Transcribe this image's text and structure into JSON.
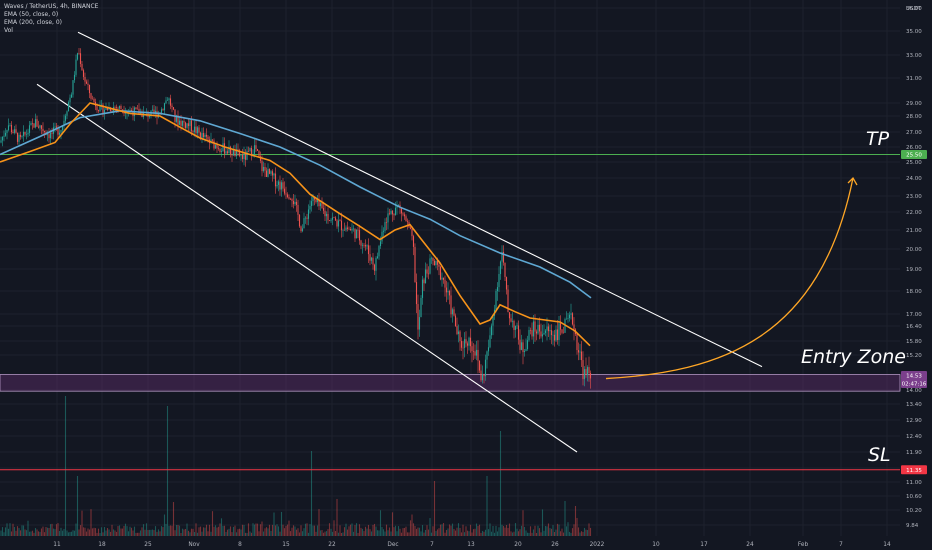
{
  "chart_data": {
    "type": "candlestick",
    "symbol_line": "Waves / TetherUS, 4h, BINANCE",
    "indicators": [
      "EMA (50, close, 0)",
      "EMA (200, close, 0)",
      "Vol"
    ],
    "currency": "USDT",
    "ylim": [
      9.5,
      36.5
    ],
    "y_ticks": [
      36.0,
      35.0,
      33.0,
      31.0,
      29.0,
      28.0,
      27.0,
      26.0,
      25.0,
      24.0,
      23.0,
      22.0,
      21.0,
      20.0,
      19.0,
      18.0,
      17.0,
      16.4,
      15.8,
      15.2,
      14.0,
      13.4,
      12.9,
      12.4,
      11.9,
      11.4,
      11.0,
      10.6,
      10.2,
      9.84
    ],
    "x_ticks": [
      "11",
      "18",
      "25",
      "Nov",
      "8",
      "15",
      "22",
      "Dec",
      "7",
      "13",
      "20",
      "26",
      "2022",
      "10",
      "17",
      "24",
      "Feb",
      "7",
      "14"
    ],
    "tp_price": "25.50",
    "entry_zone_price": "14.53",
    "countdown": "02:47:16",
    "sl_price": "11.35",
    "ema50_path": [
      [
        0,
        25.0
      ],
      [
        30,
        25.7
      ],
      [
        55,
        26.3
      ],
      [
        70,
        27.5
      ],
      [
        90,
        29.0
      ],
      [
        110,
        28.6
      ],
      [
        130,
        28.2
      ],
      [
        160,
        28.0
      ],
      [
        180,
        27.3
      ],
      [
        200,
        26.6
      ],
      [
        225,
        26.0
      ],
      [
        250,
        25.5
      ],
      [
        270,
        25.1
      ],
      [
        290,
        24.3
      ],
      [
        310,
        23.1
      ],
      [
        340,
        21.9
      ],
      [
        360,
        21.2
      ],
      [
        380,
        20.5
      ],
      [
        395,
        21.0
      ],
      [
        410,
        21.3
      ],
      [
        420,
        20.6
      ],
      [
        440,
        19.3
      ],
      [
        460,
        17.8
      ],
      [
        480,
        16.5
      ],
      [
        490,
        16.7
      ],
      [
        500,
        17.4
      ],
      [
        515,
        17.1
      ],
      [
        530,
        16.8
      ],
      [
        560,
        16.6
      ],
      [
        575,
        16.2
      ],
      [
        590,
        15.6
      ]
    ],
    "ema200_path": [
      [
        0,
        25.5
      ],
      [
        40,
        26.7
      ],
      [
        80,
        27.9
      ],
      [
        120,
        28.4
      ],
      [
        160,
        28.2
      ],
      [
        200,
        27.7
      ],
      [
        240,
        26.9
      ],
      [
        280,
        26.0
      ],
      [
        320,
        24.8
      ],
      [
        360,
        23.5
      ],
      [
        400,
        22.3
      ],
      [
        430,
        21.6
      ],
      [
        460,
        20.7
      ],
      [
        500,
        19.8
      ],
      [
        540,
        19.1
      ],
      [
        570,
        18.4
      ],
      [
        591,
        17.7
      ]
    ],
    "channel_lines": [
      {
        "from": [
          78,
          34.9
        ],
        "to": [
          762,
          14.8
        ]
      },
      {
        "from": [
          37,
          30.5
        ],
        "to": [
          577,
          11.9
        ]
      }
    ],
    "arrow_path": {
      "from": [
        606,
        14.53
      ],
      "to": [
        853,
        24.0
      ]
    },
    "last_price": 14.53
  }
}
